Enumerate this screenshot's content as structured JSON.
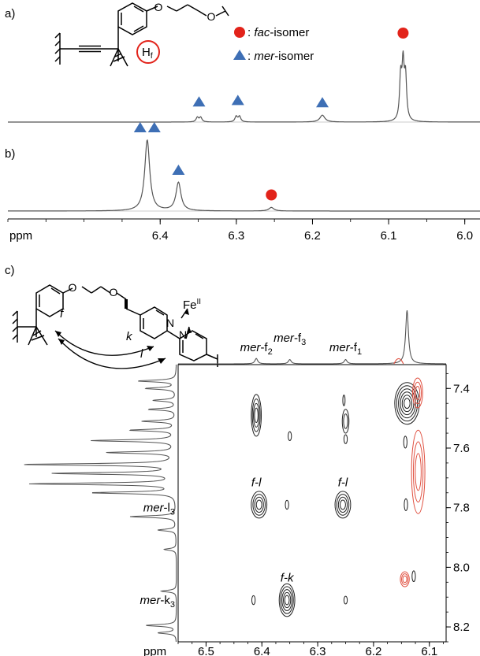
{
  "panel_labels": {
    "a": "a)",
    "b": "b)",
    "c": "c)"
  },
  "legend": [
    {
      "symbol": "circle",
      "color": "#e2231a",
      "prefix": ": ",
      "italic": "fac",
      "suffix": "-isomer"
    },
    {
      "symbol": "triangle",
      "color": "#3e6fb5",
      "prefix": ": ",
      "italic": "mer",
      "suffix": "-isomer"
    }
  ],
  "structure_a": {
    "proton_label": "H",
    "proton_sub": "f"
  },
  "structure_c": {
    "metal": "Fe",
    "metal_sup": "II",
    "atoms": [
      "O",
      "O",
      "N",
      "N"
    ],
    "proton_labels": [
      "f",
      "k",
      "l"
    ]
  },
  "colors": {
    "spectrum": "#555555",
    "positive_contour": "#222222",
    "negative_contour": "#e05040",
    "fac": "#e2231a",
    "mer": "#3e6fb5"
  },
  "chart_data": [
    {
      "type": "line",
      "panel": "a",
      "xlim": [
        6.6,
        5.98
      ],
      "peaks": [
        {
          "ppm": 6.349,
          "height": 0.1,
          "shape": "doublet",
          "marker": "triangle"
        },
        {
          "ppm": 6.298,
          "height": 0.12,
          "shape": "doublet",
          "marker": "triangle"
        },
        {
          "ppm": 6.187,
          "height": 0.09,
          "shape": "singlet",
          "marker": "triangle"
        },
        {
          "ppm": 6.081,
          "height": 1.0,
          "shape": "triplet",
          "marker": "circle"
        }
      ]
    },
    {
      "type": "line",
      "panel": "b",
      "xlim": [
        6.6,
        5.98
      ],
      "peaks": [
        {
          "ppm": 6.417,
          "height": 1.0,
          "shape": "singlet",
          "marker": "double-triangle"
        },
        {
          "ppm": 6.376,
          "height": 0.4,
          "shape": "singlet",
          "marker": "triangle"
        },
        {
          "ppm": 6.254,
          "height": 0.05,
          "shape": "singlet",
          "marker": "circle"
        }
      ],
      "xaxis": {
        "label": "ppm",
        "ticks": [
          6.4,
          6.3,
          6.2,
          6.1,
          6.0
        ],
        "tick_labels": [
          "6.4",
          "6.3",
          "6.2",
          "6.1",
          "6.0"
        ]
      }
    },
    {
      "type": "heatmap",
      "panel": "c",
      "xlim": [
        6.55,
        6.07
      ],
      "ylim": [
        7.32,
        8.25
      ],
      "xaxis": {
        "label": "ppm",
        "ticks": [
          6.5,
          6.4,
          6.3,
          6.2,
          6.1
        ],
        "tick_labels": [
          "6.5",
          "6.4",
          "6.3",
          "6.2",
          "6.1"
        ]
      },
      "yaxis": {
        "ticks": [
          7.4,
          7.6,
          7.8,
          8.0,
          8.2
        ],
        "tick_labels": [
          "7.4",
          "7.6",
          "7.8",
          "8.0",
          "8.2"
        ]
      },
      "top_projection": [
        {
          "ppm": 6.41,
          "height": 0.1
        },
        {
          "ppm": 6.35,
          "height": 0.08
        },
        {
          "ppm": 6.25,
          "height": 0.08
        },
        {
          "ppm": 6.155,
          "height": 0.12,
          "color": "#e05040"
        },
        {
          "ppm": 6.14,
          "height": 1.0
        }
      ],
      "top_labels": [
        {
          "ppm": 6.41,
          "main": "mer",
          "rest": "-f",
          "sub": "2"
        },
        {
          "ppm": 6.35,
          "main": "mer",
          "rest": "-f",
          "sub": "3"
        },
        {
          "ppm": 6.25,
          "main": "mer",
          "rest": "-f",
          "sub": "1"
        }
      ],
      "left_projection": [
        {
          "ppm": 7.375,
          "height": 0.25
        },
        {
          "ppm": 7.4,
          "height": 0.2
        },
        {
          "ppm": 7.44,
          "height": 0.15
        },
        {
          "ppm": 7.47,
          "height": 0.18
        },
        {
          "ppm": 7.51,
          "height": 0.22
        },
        {
          "ppm": 7.54,
          "height": 0.3
        },
        {
          "ppm": 7.575,
          "height": 0.55
        },
        {
          "ppm": 7.615,
          "height": 0.45
        },
        {
          "ppm": 7.655,
          "height": 1.0
        },
        {
          "ppm": 7.685,
          "height": 0.8
        },
        {
          "ppm": 7.72,
          "height": 0.95
        },
        {
          "ppm": 7.75,
          "height": 0.55
        },
        {
          "ppm": 7.83,
          "height": 0.3
        },
        {
          "ppm": 7.875,
          "height": 0.12
        },
        {
          "ppm": 7.94,
          "height": 0.08
        },
        {
          "ppm": 8.08,
          "height": 0.1
        },
        {
          "ppm": 8.195,
          "height": 0.2
        },
        {
          "ppm": 8.22,
          "height": 0.12
        }
      ],
      "left_labels": [
        {
          "ppm": 7.8,
          "main": "mer",
          "rest": "-l",
          "sub": "3"
        },
        {
          "ppm": 8.11,
          "main": "mer",
          "rest": "-k",
          "sub": "3"
        }
      ],
      "cross_labels": [
        {
          "ppm_x": 6.41,
          "ppm_y": 7.715,
          "text": "f-l"
        },
        {
          "ppm_x": 6.255,
          "ppm_y": 7.715,
          "text": "f-l"
        },
        {
          "ppm_x": 6.355,
          "ppm_y": 8.035,
          "text": "f-k"
        }
      ],
      "contours": [
        {
          "x": 6.41,
          "y": 7.49,
          "rx": 0.009,
          "ry": 0.07,
          "levels": 4,
          "color": "positive"
        },
        {
          "x": 6.405,
          "y": 7.79,
          "rx": 0.014,
          "ry": 0.045,
          "levels": 4,
          "color": "positive"
        },
        {
          "x": 6.355,
          "y": 7.79,
          "rx": 0.003,
          "ry": 0.015,
          "levels": 1,
          "color": "positive"
        },
        {
          "x": 6.35,
          "y": 7.56,
          "rx": 0.003,
          "ry": 0.015,
          "levels": 1,
          "color": "positive"
        },
        {
          "x": 6.255,
          "y": 7.79,
          "rx": 0.014,
          "ry": 0.045,
          "levels": 4,
          "color": "positive"
        },
        {
          "x": 6.253,
          "y": 7.44,
          "rx": 0.002,
          "ry": 0.018,
          "levels": 1,
          "color": "positive"
        },
        {
          "x": 6.25,
          "y": 7.51,
          "rx": 0.006,
          "ry": 0.04,
          "levels": 2,
          "color": "positive"
        },
        {
          "x": 6.25,
          "y": 7.57,
          "rx": 0.003,
          "ry": 0.015,
          "levels": 1,
          "color": "positive"
        },
        {
          "x": 6.355,
          "y": 8.11,
          "rx": 0.014,
          "ry": 0.055,
          "levels": 5,
          "color": "positive"
        },
        {
          "x": 6.415,
          "y": 8.11,
          "rx": 0.003,
          "ry": 0.015,
          "levels": 1,
          "color": "positive"
        },
        {
          "x": 6.25,
          "y": 8.11,
          "rx": 0.003,
          "ry": 0.013,
          "levels": 1,
          "color": "positive"
        },
        {
          "x": 6.14,
          "y": 7.45,
          "rx": 0.022,
          "ry": 0.07,
          "levels": 6,
          "color": "positive"
        },
        {
          "x": 6.143,
          "y": 7.58,
          "rx": 0.003,
          "ry": 0.02,
          "levels": 1,
          "color": "positive"
        },
        {
          "x": 6.142,
          "y": 7.79,
          "rx": 0.003,
          "ry": 0.02,
          "levels": 1,
          "color": "positive"
        },
        {
          "x": 6.128,
          "y": 8.03,
          "rx": 0.003,
          "ry": 0.018,
          "levels": 1,
          "color": "positive"
        },
        {
          "x": 6.121,
          "y": 7.415,
          "rx": 0.009,
          "ry": 0.05,
          "levels": 3,
          "color": "negative"
        },
        {
          "x": 6.12,
          "y": 7.68,
          "rx": 0.012,
          "ry": 0.14,
          "levels": 3,
          "color": "negative"
        },
        {
          "x": 6.144,
          "y": 8.04,
          "rx": 0.008,
          "ry": 0.025,
          "levels": 3,
          "color": "negative"
        }
      ]
    }
  ]
}
